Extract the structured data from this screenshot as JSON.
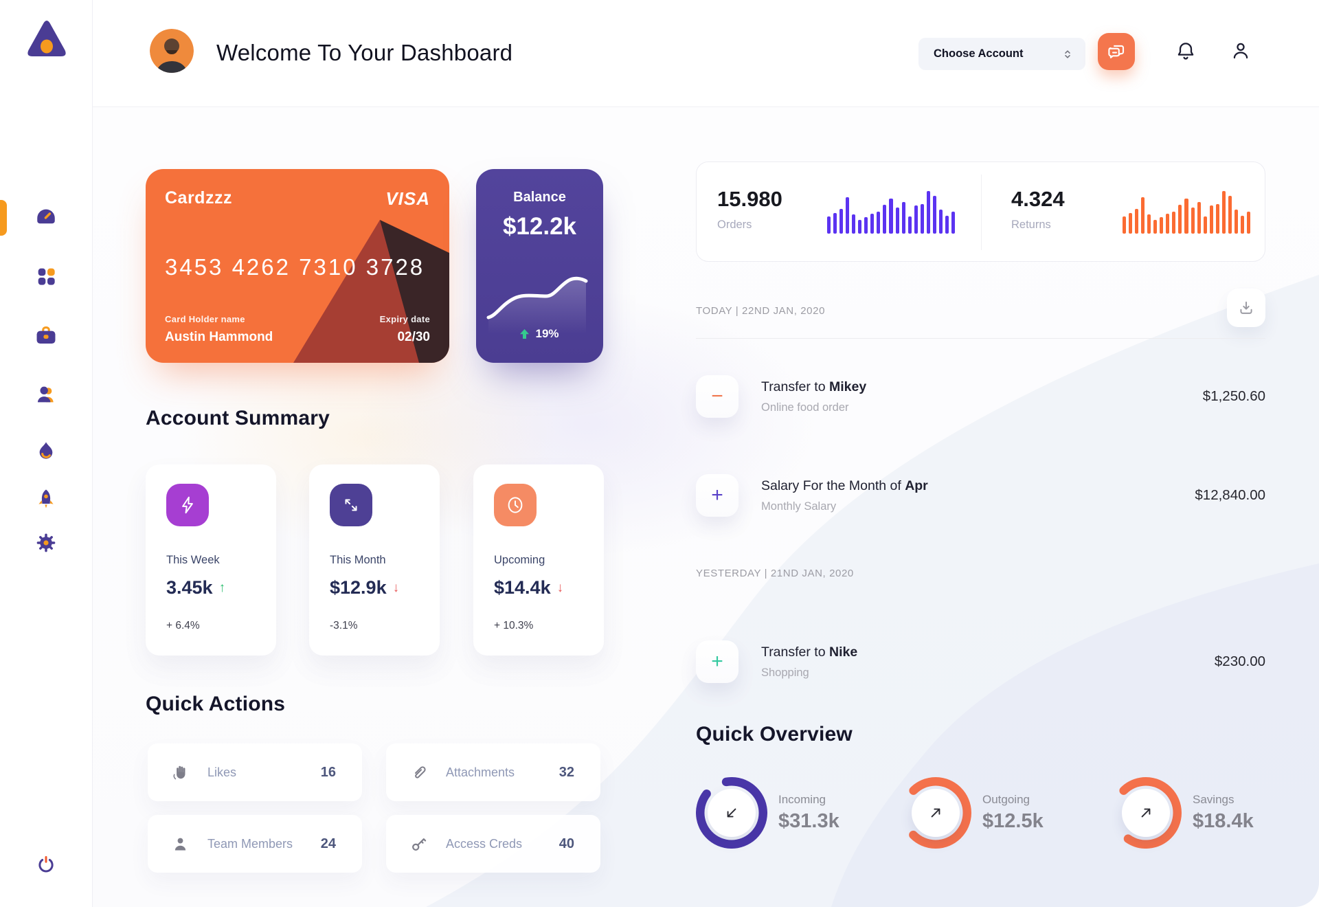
{
  "window": {
    "title": "Welcome To Your Dashboard"
  },
  "header": {
    "account_select": {
      "value": "Choose Account"
    }
  },
  "sidebar": {
    "active_item": "dashboard",
    "items": [
      "dashboard-gauge",
      "apps-grid",
      "briefcase",
      "team",
      "flame",
      "rocket",
      "settings"
    ]
  },
  "bank_card": {
    "name": "Cardzzz",
    "brand": "VISA",
    "number": "3453 4262 7310 3728",
    "holder_label": "Card Holder name",
    "holder": "Austin Hammond",
    "expiry_label": "Expiry date",
    "expiry": "02/30"
  },
  "balance_card": {
    "label": "Balance",
    "value": "$12.2k",
    "change": "19%",
    "trend": "up"
  },
  "stats": {
    "orders": {
      "value": "15.980",
      "label": "Orders",
      "bar_color": "#5B33F1",
      "bars": [
        40,
        48,
        58,
        85,
        45,
        32,
        38,
        46,
        52,
        68,
        82,
        62,
        74,
        40,
        66,
        70,
        100,
        88,
        56,
        42,
        52
      ]
    },
    "returns": {
      "value": "4.324",
      "label": "Returns",
      "bar_color": "#FB6B32",
      "bars": [
        40,
        48,
        58,
        85,
        45,
        32,
        38,
        46,
        52,
        68,
        82,
        62,
        74,
        40,
        66,
        70,
        100,
        88,
        56,
        42,
        52
      ]
    }
  },
  "account_summary": {
    "title": "Account Summary",
    "cards": [
      {
        "label": "This Week",
        "value": "3.45k",
        "trend_arrow": "↑",
        "trend_color": "#2FBF71",
        "change": "+ 6.4%",
        "icon": "bolt",
        "icon_bg": "#A63ED2"
      },
      {
        "label": "This Month",
        "value": "$12.9k",
        "trend_arrow": "↓",
        "trend_color": "#E85D5D",
        "change": "-3.1%",
        "icon": "transfer-arrows",
        "icon_bg": "#4E4095"
      },
      {
        "label": "Upcoming",
        "value": "$14.4k",
        "trend_arrow": "↓",
        "trend_color": "#E85D5D",
        "change": "+ 10.3%",
        "icon": "clock",
        "icon_bg": "#F58B64"
      }
    ]
  },
  "quick_actions": {
    "title": "Quick Actions",
    "items": [
      {
        "icon": "waving-hand",
        "label": "Likes",
        "count": "16"
      },
      {
        "icon": "paperclip",
        "label": "Attachments",
        "count": "32"
      },
      {
        "icon": "person",
        "label": "Team Members",
        "count": "24"
      },
      {
        "icon": "key",
        "label": "Access Creds",
        "count": "40"
      }
    ]
  },
  "transactions": {
    "sections": [
      {
        "header": "TODAY | 22ND JAN, 2020",
        "rows": [
          {
            "prefix": "Transfer to ",
            "bold": "Mikey",
            "subtitle": "Online food order",
            "amount": "$1,250.60",
            "sign": "−",
            "sign_color": "#F0784F"
          },
          {
            "prefix": "Salary For the Month of ",
            "bold": "Apr",
            "subtitle": "Monthly Salary",
            "amount": "$12,840.00",
            "sign": "+",
            "sign_color": "#5A43C9"
          }
        ]
      },
      {
        "header": "YESTERDAY | 21ND JAN, 2020",
        "rows": [
          {
            "prefix": "Transfer to ",
            "bold": "Nike",
            "subtitle": "Shopping",
            "amount": "$230.00",
            "sign": "+",
            "sign_color": "#35C9A0"
          }
        ]
      }
    ]
  },
  "quick_overview": {
    "title": "Quick Overview",
    "items": [
      {
        "label": "Incoming",
        "value": "$31.3k",
        "color": "#4936A8",
        "percent": 88,
        "start_deg": -10,
        "arrow": "down-left"
      },
      {
        "label": "Outgoing",
        "value": "$12.5k",
        "color": "#F4714B",
        "percent": 75,
        "start_deg": -45,
        "arrow": "up-right"
      },
      {
        "label": "Savings",
        "value": "$18.4k",
        "color": "#F4714B",
        "percent": 72,
        "start_deg": -45,
        "arrow": "up-right"
      }
    ]
  },
  "colors": {
    "primary_orange": "#F5713B",
    "chat_orange": "#F4764D",
    "accent_yellow_orange": "#F69A1E",
    "sidebar_purple": "#4A3C94",
    "balance_purple": "#4F4098",
    "bar_purple": "#5B33F1",
    "bar_orange": "#FB6B32",
    "green": "#2FBF71",
    "red": "#E85D5D",
    "teal": "#35C9A0",
    "navy": "#232B54"
  }
}
